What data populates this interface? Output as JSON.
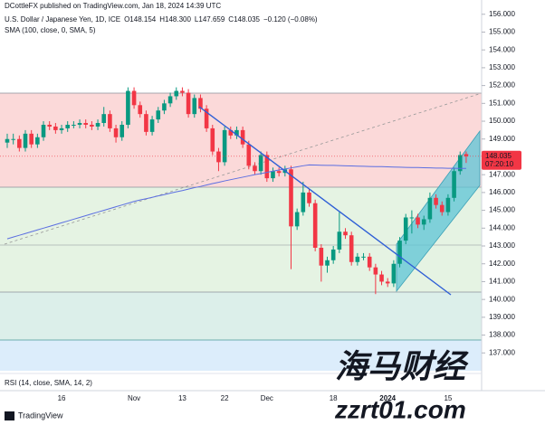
{
  "header": {
    "publisher": "DCottleFX published on TradingView.com, Jan 18, 2024 14:39 UTC",
    "brand": "TradingView"
  },
  "watermark": {
    "cn": "海马财经",
    "url": "zzrt01.com"
  },
  "chart_data": {
    "type": "candlestick",
    "title": "U.S. Dollar / Japanese Yen, 1D, ICE",
    "quote": [
      "O148.154",
      "H148.300",
      "L147.659",
      "C148.035",
      "−0.120 (−0.08%)"
    ],
    "indicator": "SMA (100, close, 0, SMA, 5)",
    "rsi_label": "RSI (14, close, SMA, 14, 2)",
    "last_price": 148.035,
    "countdown": "07:20:10",
    "up_color": "#089981",
    "down_color": "#f23645",
    "sma_color": "#5b6ee1",
    "categories": [
      null,
      null,
      null,
      null,
      null,
      null,
      null,
      null,
      null,
      "16",
      null,
      null,
      null,
      null,
      null,
      null,
      null,
      null,
      null,
      null,
      null,
      "Nov",
      null,
      null,
      null,
      null,
      null,
      null,
      null,
      "13",
      null,
      null,
      null,
      null,
      null,
      null,
      "22",
      null,
      null,
      null,
      null,
      null,
      null,
      "Dec",
      null,
      null,
      null,
      null,
      null,
      null,
      null,
      null,
      null,
      null,
      "18",
      null,
      null,
      null,
      null,
      null,
      null,
      null,
      null,
      "2024",
      null,
      null,
      null,
      null,
      null,
      null,
      null,
      null,
      null,
      "15",
      null,
      null,
      null
    ],
    "ohlc": [
      [
        148.8,
        149.3,
        148.5,
        149.0
      ],
      [
        149.0,
        149.3,
        148.7,
        149.0
      ],
      [
        149.0,
        149.2,
        148.3,
        148.5
      ],
      [
        148.5,
        149.5,
        148.3,
        149.3
      ],
      [
        149.3,
        149.5,
        148.5,
        148.7
      ],
      [
        148.7,
        149.3,
        148.5,
        149.1
      ],
      [
        149.1,
        150.0,
        148.9,
        149.8
      ],
      [
        149.8,
        150.0,
        149.5,
        149.7
      ],
      [
        149.7,
        149.9,
        149.3,
        149.5
      ],
      [
        149.5,
        149.8,
        149.3,
        149.6
      ],
      [
        149.6,
        150.0,
        149.4,
        149.8
      ],
      [
        149.8,
        150.0,
        149.6,
        149.8
      ],
      [
        149.8,
        150.1,
        149.6,
        149.9
      ],
      [
        149.9,
        150.1,
        149.6,
        149.8
      ],
      [
        149.8,
        150.0,
        149.5,
        149.7
      ],
      [
        149.7,
        150.1,
        149.5,
        149.9
      ],
      [
        149.9,
        150.8,
        149.7,
        150.4
      ],
      [
        150.4,
        150.6,
        149.4,
        149.6
      ],
      [
        149.6,
        149.8,
        148.8,
        149.1
      ],
      [
        149.1,
        150.0,
        148.9,
        149.8
      ],
      [
        149.8,
        151.9,
        149.6,
        151.7
      ],
      [
        151.7,
        151.9,
        150.7,
        150.9
      ],
      [
        150.9,
        151.1,
        150.2,
        150.4
      ],
      [
        150.4,
        150.6,
        149.2,
        149.4
      ],
      [
        149.4,
        150.3,
        149.2,
        150.1
      ],
      [
        150.1,
        150.8,
        149.9,
        150.6
      ],
      [
        150.6,
        151.2,
        150.4,
        151.0
      ],
      [
        151.0,
        151.6,
        150.8,
        151.4
      ],
      [
        151.4,
        151.9,
        151.2,
        151.7
      ],
      [
        151.7,
        151.9,
        151.4,
        151.6
      ],
      [
        151.6,
        151.8,
        150.2,
        150.4
      ],
      [
        150.4,
        151.5,
        150.2,
        151.3
      ],
      [
        151.3,
        151.5,
        150.5,
        150.7
      ],
      [
        150.7,
        150.9,
        149.4,
        149.6
      ],
      [
        149.6,
        149.8,
        148.1,
        148.3
      ],
      [
        148.3,
        148.5,
        147.2,
        147.7
      ],
      [
        147.7,
        149.7,
        147.5,
        149.5
      ],
      [
        149.5,
        149.7,
        149.0,
        149.2
      ],
      [
        149.2,
        149.7,
        149.0,
        149.5
      ],
      [
        149.5,
        149.7,
        148.5,
        148.7
      ],
      [
        148.7,
        148.9,
        147.3,
        147.5
      ],
      [
        147.5,
        147.7,
        147.0,
        147.2
      ],
      [
        147.2,
        148.3,
        147.0,
        148.1
      ],
      [
        148.1,
        148.3,
        146.6,
        146.8
      ],
      [
        146.8,
        147.4,
        146.6,
        147.2
      ],
      [
        147.2,
        147.4,
        146.9,
        147.1
      ],
      [
        147.1,
        147.5,
        146.9,
        147.3
      ],
      [
        147.3,
        147.5,
        141.7,
        144.1
      ],
      [
        144.1,
        145.1,
        143.9,
        144.9
      ],
      [
        144.9,
        146.6,
        144.7,
        146.0
      ],
      [
        146.0,
        146.2,
        145.2,
        145.4
      ],
      [
        145.4,
        145.6,
        142.7,
        142.9
      ],
      [
        142.9,
        143.1,
        141.0,
        141.9
      ],
      [
        141.9,
        142.4,
        141.5,
        142.2
      ],
      [
        142.2,
        143.0,
        142.0,
        142.8
      ],
      [
        142.8,
        144.9,
        142.6,
        143.8
      ],
      [
        143.8,
        144.0,
        143.4,
        143.6
      ],
      [
        143.6,
        143.8,
        141.9,
        142.1
      ],
      [
        142.1,
        142.6,
        141.9,
        142.4
      ],
      [
        142.4,
        142.6,
        142.2,
        142.4
      ],
      [
        142.4,
        142.6,
        141.6,
        141.8
      ],
      [
        141.8,
        142.0,
        140.3,
        141.4
      ],
      [
        141.4,
        141.6,
        140.8,
        141.0
      ],
      [
        141.0,
        141.2,
        140.7,
        140.9
      ],
      [
        140.9,
        142.2,
        140.7,
        142.0
      ],
      [
        142.0,
        143.5,
        141.8,
        143.3
      ],
      [
        143.3,
        144.8,
        143.1,
        144.6
      ],
      [
        144.6,
        145.0,
        143.7,
        144.6
      ],
      [
        144.6,
        144.8,
        144.0,
        144.2
      ],
      [
        144.2,
        144.7,
        143.9,
        144.5
      ],
      [
        144.5,
        146.0,
        144.3,
        145.7
      ],
      [
        145.7,
        145.9,
        145.1,
        145.3
      ],
      [
        145.3,
        145.5,
        144.7,
        144.9
      ],
      [
        144.9,
        145.9,
        144.7,
        145.7
      ],
      [
        145.7,
        147.4,
        145.5,
        147.2
      ],
      [
        147.2,
        148.3,
        147.0,
        148.1
      ],
      [
        148.154,
        148.3,
        147.659,
        148.035
      ]
    ],
    "sma": [
      143.4,
      143.5,
      143.6,
      143.7,
      143.8,
      143.9,
      144.0,
      144.1,
      144.2,
      144.3,
      144.4,
      144.5,
      144.6,
      144.7,
      144.8,
      144.9,
      145.0,
      145.1,
      145.2,
      145.3,
      145.4,
      145.5,
      145.58,
      145.65,
      145.73,
      145.81,
      145.88,
      145.96,
      146.04,
      146.11,
      146.19,
      146.27,
      146.34,
      146.42,
      146.5,
      146.57,
      146.65,
      146.72,
      146.79,
      146.86,
      146.93,
      147.0,
      147.06,
      147.13,
      147.2,
      147.26,
      147.32,
      147.38,
      147.44,
      147.5,
      147.55,
      147.54,
      147.53,
      147.52,
      147.52,
      147.51,
      147.5,
      147.49,
      147.48,
      147.47,
      147.46,
      147.45,
      147.45,
      147.44,
      147.43,
      147.42,
      147.41,
      147.4,
      147.4,
      147.39,
      147.38,
      147.37,
      147.37,
      147.36,
      147.36,
      147.35,
      147.35
    ],
    "ylim": [
      136.0,
      156.8
    ],
    "yticks": [
      {
        "value": 137,
        "label": "137.000"
      },
      {
        "value": 138,
        "label": "138.000"
      },
      {
        "value": 139,
        "label": "139.000"
      },
      {
        "value": 140,
        "label": "140.000"
      },
      {
        "value": 141,
        "label": "141.000"
      },
      {
        "value": 142,
        "label": "142.000"
      },
      {
        "value": 143,
        "label": "143.000"
      },
      {
        "value": 144,
        "label": "144.000"
      },
      {
        "value": 145,
        "label": "145.000"
      },
      {
        "value": 146,
        "label": "146.000"
      },
      {
        "value": 147,
        "label": "147.000"
      },
      {
        "value": 148,
        "label": "148.000"
      },
      {
        "value": 149,
        "label": "149.000"
      },
      {
        "value": 150,
        "label": "150.000"
      },
      {
        "value": 151,
        "label": "151.000"
      },
      {
        "value": 152,
        "label": "152.000"
      },
      {
        "value": 153,
        "label": "153.000"
      },
      {
        "value": 154,
        "label": "154.000"
      },
      {
        "value": 155,
        "label": "155.000"
      },
      {
        "value": 156,
        "label": "156.000"
      }
    ]
  }
}
